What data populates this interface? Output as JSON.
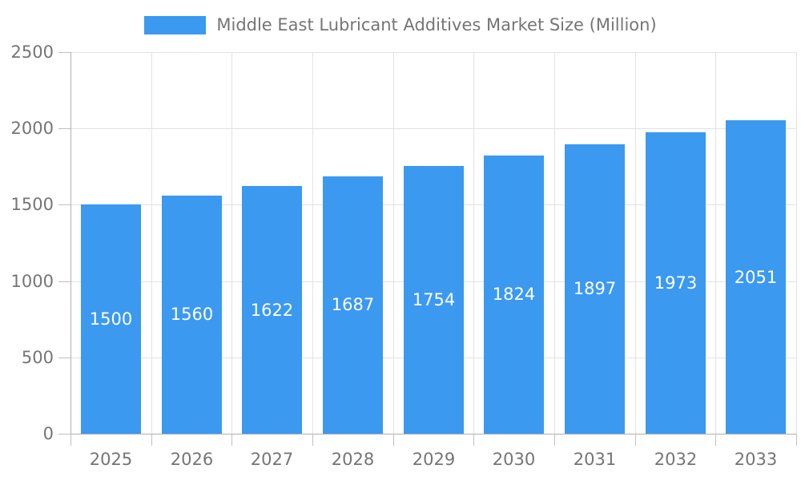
{
  "chart_data": {
    "type": "bar",
    "title": "Middle East Lubricant Additives Market Size (Million)",
    "categories": [
      "2025",
      "2026",
      "2027",
      "2028",
      "2029",
      "2030",
      "2031",
      "2032",
      "2033"
    ],
    "values": [
      1500,
      1560,
      1622,
      1687,
      1754,
      1824,
      1897,
      1973,
      2051
    ],
    "value_labels": [
      "1500",
      "1560",
      "1622",
      "1687",
      "1754",
      "1824",
      "1897",
      "1973",
      "2051"
    ],
    "xlabel": "",
    "ylabel": "",
    "ylim": [
      0,
      2500
    ],
    "yticks": [
      0,
      500,
      1000,
      1500,
      2000,
      2500
    ],
    "grid": true,
    "legend_position": "top-center",
    "colors": {
      "bar": "#3B99F0",
      "value_label_text": "#FFFFFF",
      "axis_text": "#757575",
      "gridline": "#E2E2E2",
      "axis_line": "#B0B0B0",
      "tick_mark": "#C0C0C0",
      "background": "#FFFFFF"
    }
  }
}
